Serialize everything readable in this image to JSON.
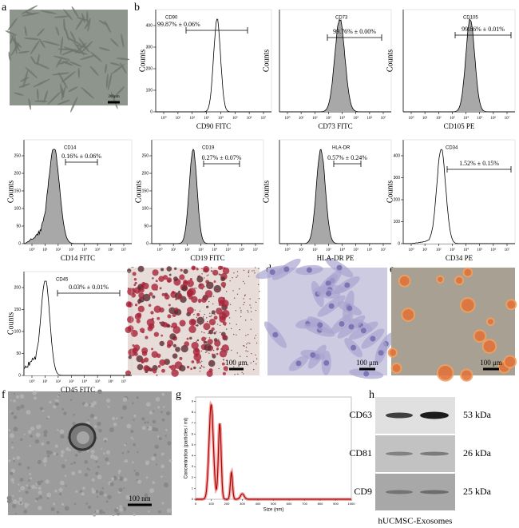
{
  "panel_labels": [
    "a",
    "b",
    "c",
    "d",
    "e",
    "f",
    "g",
    "h"
  ],
  "flow_ylabel": "Counts",
  "flow_xticks": [
    "10⁰",
    "10¹",
    "10²",
    "10³",
    "10⁴",
    "10⁵",
    "10⁶",
    "10⁷"
  ],
  "flow": [
    {
      "marker": "CD90",
      "gate": "99.87% ± 0.06%",
      "xlabel": "CD90 FITC",
      "yticks": [
        0,
        100,
        200,
        300,
        400
      ]
    },
    {
      "marker": "CD73",
      "gate": "99.76% ± 0.00%",
      "xlabel": "CD73 FITC",
      "yticks": []
    },
    {
      "marker": "CD105",
      "gate": "99.86% ± 0.01%",
      "xlabel": "CD105 PE",
      "yticks": []
    },
    {
      "marker": "CD14",
      "gate": "0.16% ± 0.06%",
      "xlabel": "CD14 FITC",
      "yticks": [
        0,
        50,
        100,
        150,
        200,
        250
      ]
    },
    {
      "marker": "CD19",
      "gate": "0.27% ± 0.07%",
      "xlabel": "CD19 FITC",
      "yticks": [
        0,
        50,
        100,
        150,
        200,
        250
      ]
    },
    {
      "marker": "HLA-DR",
      "gate": "0.57% ± 0.24%",
      "xlabel": "HLA-DR PE",
      "yticks": []
    },
    {
      "marker": "CD34",
      "gate": "1.52% ± 0.15%",
      "xlabel": "CD34 PE",
      "yticks": [
        0,
        100,
        200,
        300,
        400
      ]
    },
    {
      "marker": "CD45",
      "gate": "0.03% ± 0.01%",
      "xlabel": "CD45 FITC",
      "yticks": [
        0,
        50,
        100,
        150,
        200
      ]
    }
  ],
  "scale_bars": {
    "a": "200µm",
    "c": "100 μm",
    "d": "100 μm",
    "e": "100 μm",
    "f": "100 nm"
  },
  "nta": {
    "ylabel": "Concentration (particles / ml)",
    "xlabel": "Size (nm)",
    "xlim": [
      0,
      1000
    ],
    "ylim": [
      0,
      9.4
    ],
    "xticks": [
      0,
      100,
      200,
      300,
      400,
      500,
      600,
      700,
      800,
      900,
      1000
    ],
    "yticks": [
      0,
      1,
      2,
      3,
      4,
      5,
      6,
      7,
      8,
      9
    ]
  },
  "blot": {
    "bands": [
      {
        "name": "CD63",
        "size": "53 kDa"
      },
      {
        "name": "CD81",
        "size": "26 kDa"
      },
      {
        "name": "CD9",
        "size": "25 kDa"
      }
    ],
    "caption": "hUCMSC-Exosomes"
  }
}
